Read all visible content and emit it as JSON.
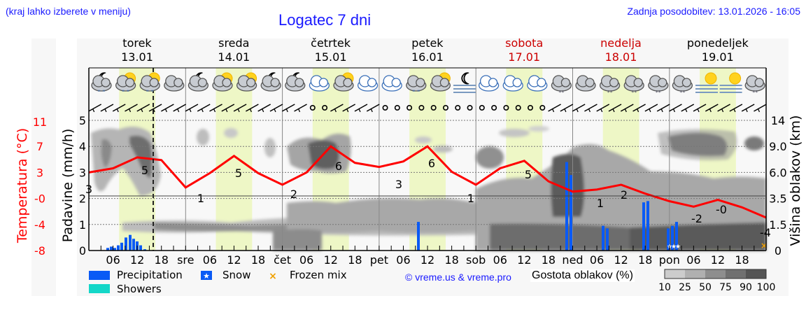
{
  "header": {
    "region_hint": "(kraj lahko izberete v meniju)",
    "title": "Logatec 7 dni",
    "last_update": "Zadnja posodobitev: 13.01.2026 - 16:05"
  },
  "days": [
    {
      "name": "torek",
      "date": "13.01",
      "weekend": false
    },
    {
      "name": "sreda",
      "date": "14.01",
      "weekend": false
    },
    {
      "name": "četrtek",
      "date": "15.01",
      "weekend": false
    },
    {
      "name": "petek",
      "date": "16.01",
      "weekend": false
    },
    {
      "name": "sobota",
      "date": "17.01",
      "weekend": true
    },
    {
      "name": "nedelja",
      "date": "18.01",
      "weekend": true
    },
    {
      "name": "ponedeljek",
      "date": "19.01",
      "weekend": false
    }
  ],
  "axes": {
    "temp_label": "Temperatura (°C)",
    "precip_label": "Padavine (mm/h)",
    "cloud_height_label": "Višina oblakov (km)",
    "temp_ticks": [
      "11",
      "7",
      "3",
      "-0",
      "-4",
      "-8"
    ],
    "precip_ticks": [
      "5",
      "4",
      "3",
      "2",
      "1",
      "0"
    ],
    "cloud_height_ticks": [
      "14",
      "9.0",
      "6.0",
      "3.5",
      "1.5",
      "0"
    ],
    "x_ticks": [
      "06",
      "12",
      "18",
      "sre",
      "06",
      "12",
      "18",
      "čet",
      "06",
      "12",
      "18",
      "pet",
      "06",
      "12",
      "18",
      "sob",
      "06",
      "12",
      "18",
      "ned",
      "06",
      "12",
      "18",
      "pon",
      "06",
      "12",
      "18"
    ]
  },
  "legend": {
    "precipitation": "Precipitation",
    "snow": "Snow",
    "frozen_mix": "Frozen mix",
    "showers": "Showers",
    "credit": "© vreme.us & vreme.pro",
    "cloud_density_label": "Gostota oblakov (%)",
    "cloud_density_ticks": [
      "10",
      "25",
      "50",
      "75",
      "90",
      "100"
    ]
  },
  "colors": {
    "title": "#1a1aff",
    "temperature": "#ff0000",
    "precipitation": "#0a5af5",
    "showers": "#14d7c8",
    "frozen_mix": "#f0a000",
    "daylight": "#eef7c6",
    "weekend": "#cc0000"
  },
  "chart_data": {
    "type": "line",
    "title": "Logatec 7 dni",
    "xlabel": "",
    "ylabel": "Temperatura (°C)",
    "ylim": [
      -8,
      11
    ],
    "x": [
      "13.01 00",
      "13.01 06",
      "13.01 12",
      "13.01 18",
      "14.01 00",
      "14.01 06",
      "14.01 12",
      "14.01 18",
      "15.01 00",
      "15.01 06",
      "15.01 12",
      "15.01 18",
      "16.01 00",
      "16.01 06",
      "16.01 12",
      "16.01 18",
      "17.01 00",
      "17.01 06",
      "17.01 12",
      "17.01 18",
      "18.01 00",
      "18.01 06",
      "18.01 12",
      "18.01 18",
      "19.01 00",
      "19.01 06",
      "19.01 12",
      "19.01 18",
      "20.01 00"
    ],
    "series": [
      {
        "name": "Temperatura (°C)",
        "values": [
          3.4,
          4,
          5.6,
          5.2,
          1.2,
          3.3,
          5.8,
          3.3,
          1.6,
          3.4,
          7.2,
          4.8,
          4.2,
          5.0,
          7.2,
          3.5,
          1.6,
          4.0,
          5.1,
          2.1,
          0.6,
          0.9,
          1.6,
          0.3,
          -0.8,
          -1.6,
          -0.6,
          -1.7,
          -3.2
        ]
      },
      {
        "name": "Precipitation (mm/h)",
        "values": [
          0,
          0.1,
          0.4,
          0.2,
          0,
          0,
          0,
          0,
          0,
          0,
          0,
          0,
          0,
          0,
          1.1,
          0,
          0,
          0,
          0,
          0,
          3.4,
          0.9,
          1.0,
          1.9,
          1.1,
          0,
          0,
          0,
          0
        ]
      }
    ],
    "annotations": {
      "temp_labels": [
        {
          "x": "13.01 00",
          "value": "3"
        },
        {
          "x": "13.01 13",
          "value": "5"
        },
        {
          "x": "14.01 04",
          "value": "1"
        },
        {
          "x": "14.01 13",
          "value": "5"
        },
        {
          "x": "15.01 04",
          "value": "2"
        },
        {
          "x": "15.01 13",
          "value": "6"
        },
        {
          "x": "16.01 00",
          "value": "3"
        },
        {
          "x": "16.01 10",
          "value": "6"
        },
        {
          "x": "17.01 00",
          "value": "1"
        },
        {
          "x": "17.01 13",
          "value": "5"
        },
        {
          "x": "18.01 03",
          "value": "1"
        },
        {
          "x": "18.01 09",
          "value": "2"
        },
        {
          "x": "19.01 03",
          "value": "-2"
        },
        {
          "x": "19.01 09",
          "value": "-0"
        },
        {
          "x": "19.01 23",
          "value": "-4"
        }
      ],
      "now_marker": "13.01 16:05"
    },
    "secondary_axes": {
      "precip_ylim": [
        0,
        5
      ],
      "cloud_height_ticks_km": [
        0,
        1.5,
        3.5,
        6.0,
        9.0,
        14
      ]
    },
    "legend_position": "bottom",
    "grid": true
  }
}
